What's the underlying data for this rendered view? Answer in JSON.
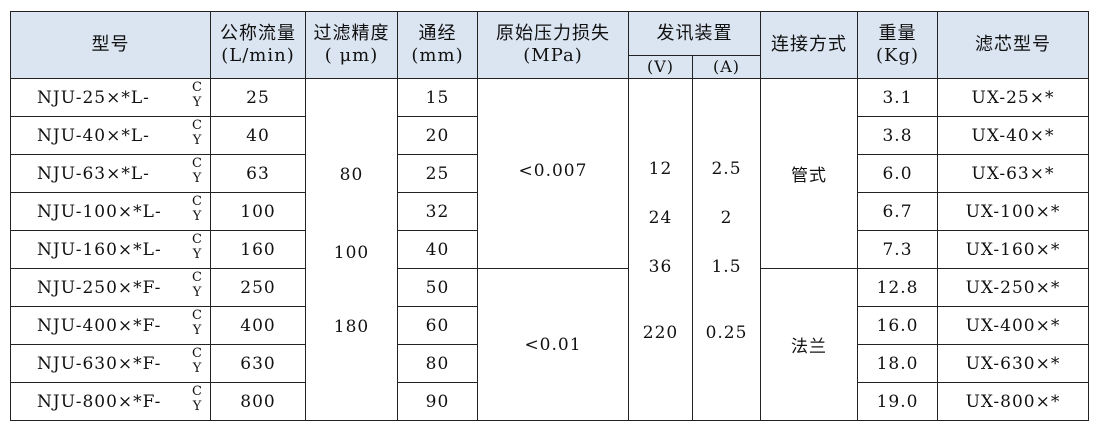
{
  "headers": {
    "model": "型号",
    "flow": "公称流量",
    "flow_unit": "(L/min)",
    "precision": "过滤精度",
    "precision_unit": "( μm)",
    "bore": "通经",
    "bore_unit": "(mm)",
    "pressure": "原始压力损失",
    "pressure_unit": "(MPa)",
    "signal": "发讯装置",
    "volt": "(V)",
    "amp": "(A)",
    "connection": "连接方式",
    "weight": "重量",
    "weight_unit": "(Kg)",
    "element": "滤芯型号"
  },
  "suffix": {
    "c": "C",
    "y": "Y"
  },
  "rows": [
    {
      "model": "NJU-25×*L-",
      "flow": "25",
      "bore": "15",
      "weight": "3.1",
      "element": "UX-25×*"
    },
    {
      "model": "NJU-40×*L-",
      "flow": "40",
      "bore": "20",
      "weight": "3.8",
      "element": "UX-40×*"
    },
    {
      "model": "NJU-63×*L-",
      "flow": "63",
      "bore": "25",
      "weight": "6.0",
      "element": "UX-63×*"
    },
    {
      "model": "NJU-100×*L-",
      "flow": "100",
      "bore": "32",
      "weight": "6.7",
      "element": "UX-100×*"
    },
    {
      "model": "NJU-160×*L-",
      "flow": "160",
      "bore": "40",
      "weight": "7.3",
      "element": "UX-160×*"
    },
    {
      "model": "NJU-250×*F-",
      "flow": "250",
      "bore": "50",
      "weight": "12.8",
      "element": "UX-250×*"
    },
    {
      "model": "NJU-400×*F-",
      "flow": "400",
      "bore": "60",
      "weight": "16.0",
      "element": "UX-400×*"
    },
    {
      "model": "NJU-630×*F-",
      "flow": "630",
      "bore": "80",
      "weight": "18.0",
      "element": "UX-630×*"
    },
    {
      "model": "NJU-800×*F-",
      "flow": "800",
      "bore": "90",
      "weight": "19.0",
      "element": "UX-800×*"
    }
  ],
  "precision_values": [
    "80",
    "100",
    "180"
  ],
  "pressure_values": [
    "<0.007",
    "<0.01"
  ],
  "volt_values": [
    "12",
    "24",
    "36",
    "220"
  ],
  "amp_values": [
    "2.5",
    "2",
    "1.5",
    "0.25"
  ],
  "connection_values": [
    "管式",
    "法兰"
  ]
}
